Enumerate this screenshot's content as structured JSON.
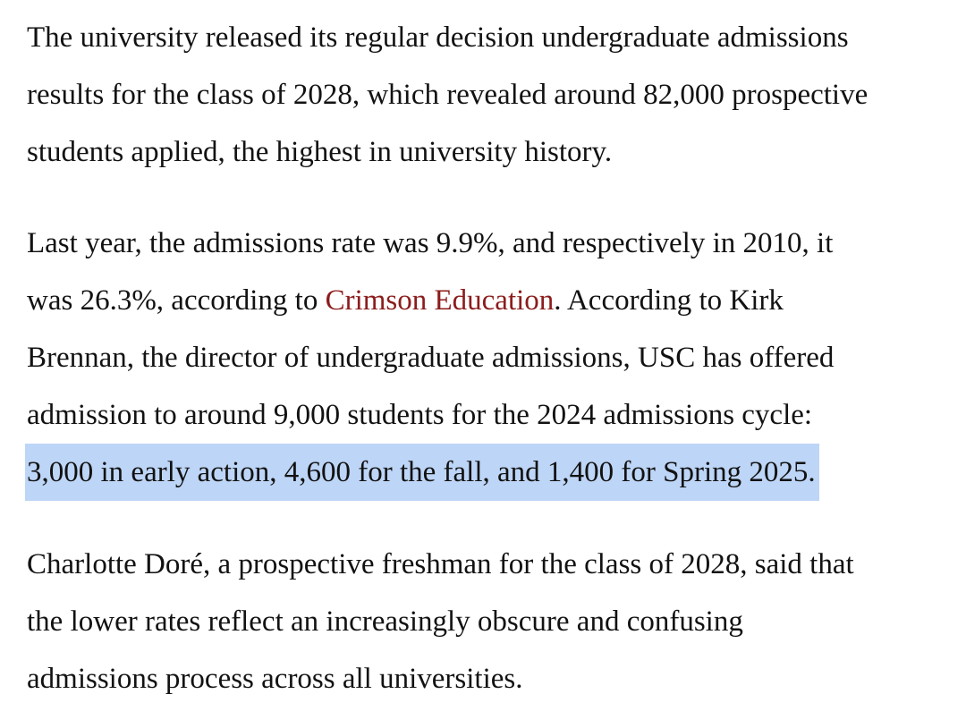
{
  "article": {
    "paragraphs": [
      {
        "lines": [
          "The university released its regular decision undergraduate admissions",
          "results for the class of 2028, which revealed around 82,000 prospective",
          "students applied, the highest in university history."
        ]
      },
      {
        "line1": "Last year, the admissions rate was 9.9%, and respectively in 2010, it",
        "line2_before": "was 26.3%, according to ",
        "line2_link": "Crimson Education",
        "line2_after": ". According to Kirk",
        "line3": "Brennan, the director of undergraduate admissions, USC has offered",
        "line4": "admission to around 9,000 students for the 2024 admissions cycle:",
        "line5_highlighted": "3,000 in early action, 4,600 for the fall, and 1,400 for Spring 2025."
      },
      {
        "lines": [
          "Charlotte Doré, a prospective freshman for the class of 2028, said that",
          "the lower rates reflect an increasingly obscure and confusing",
          "admissions process across all universities."
        ]
      }
    ],
    "colors": {
      "text": "#121212",
      "link": "#8c1c1c",
      "selection_highlight": "#bdd5f6"
    }
  }
}
